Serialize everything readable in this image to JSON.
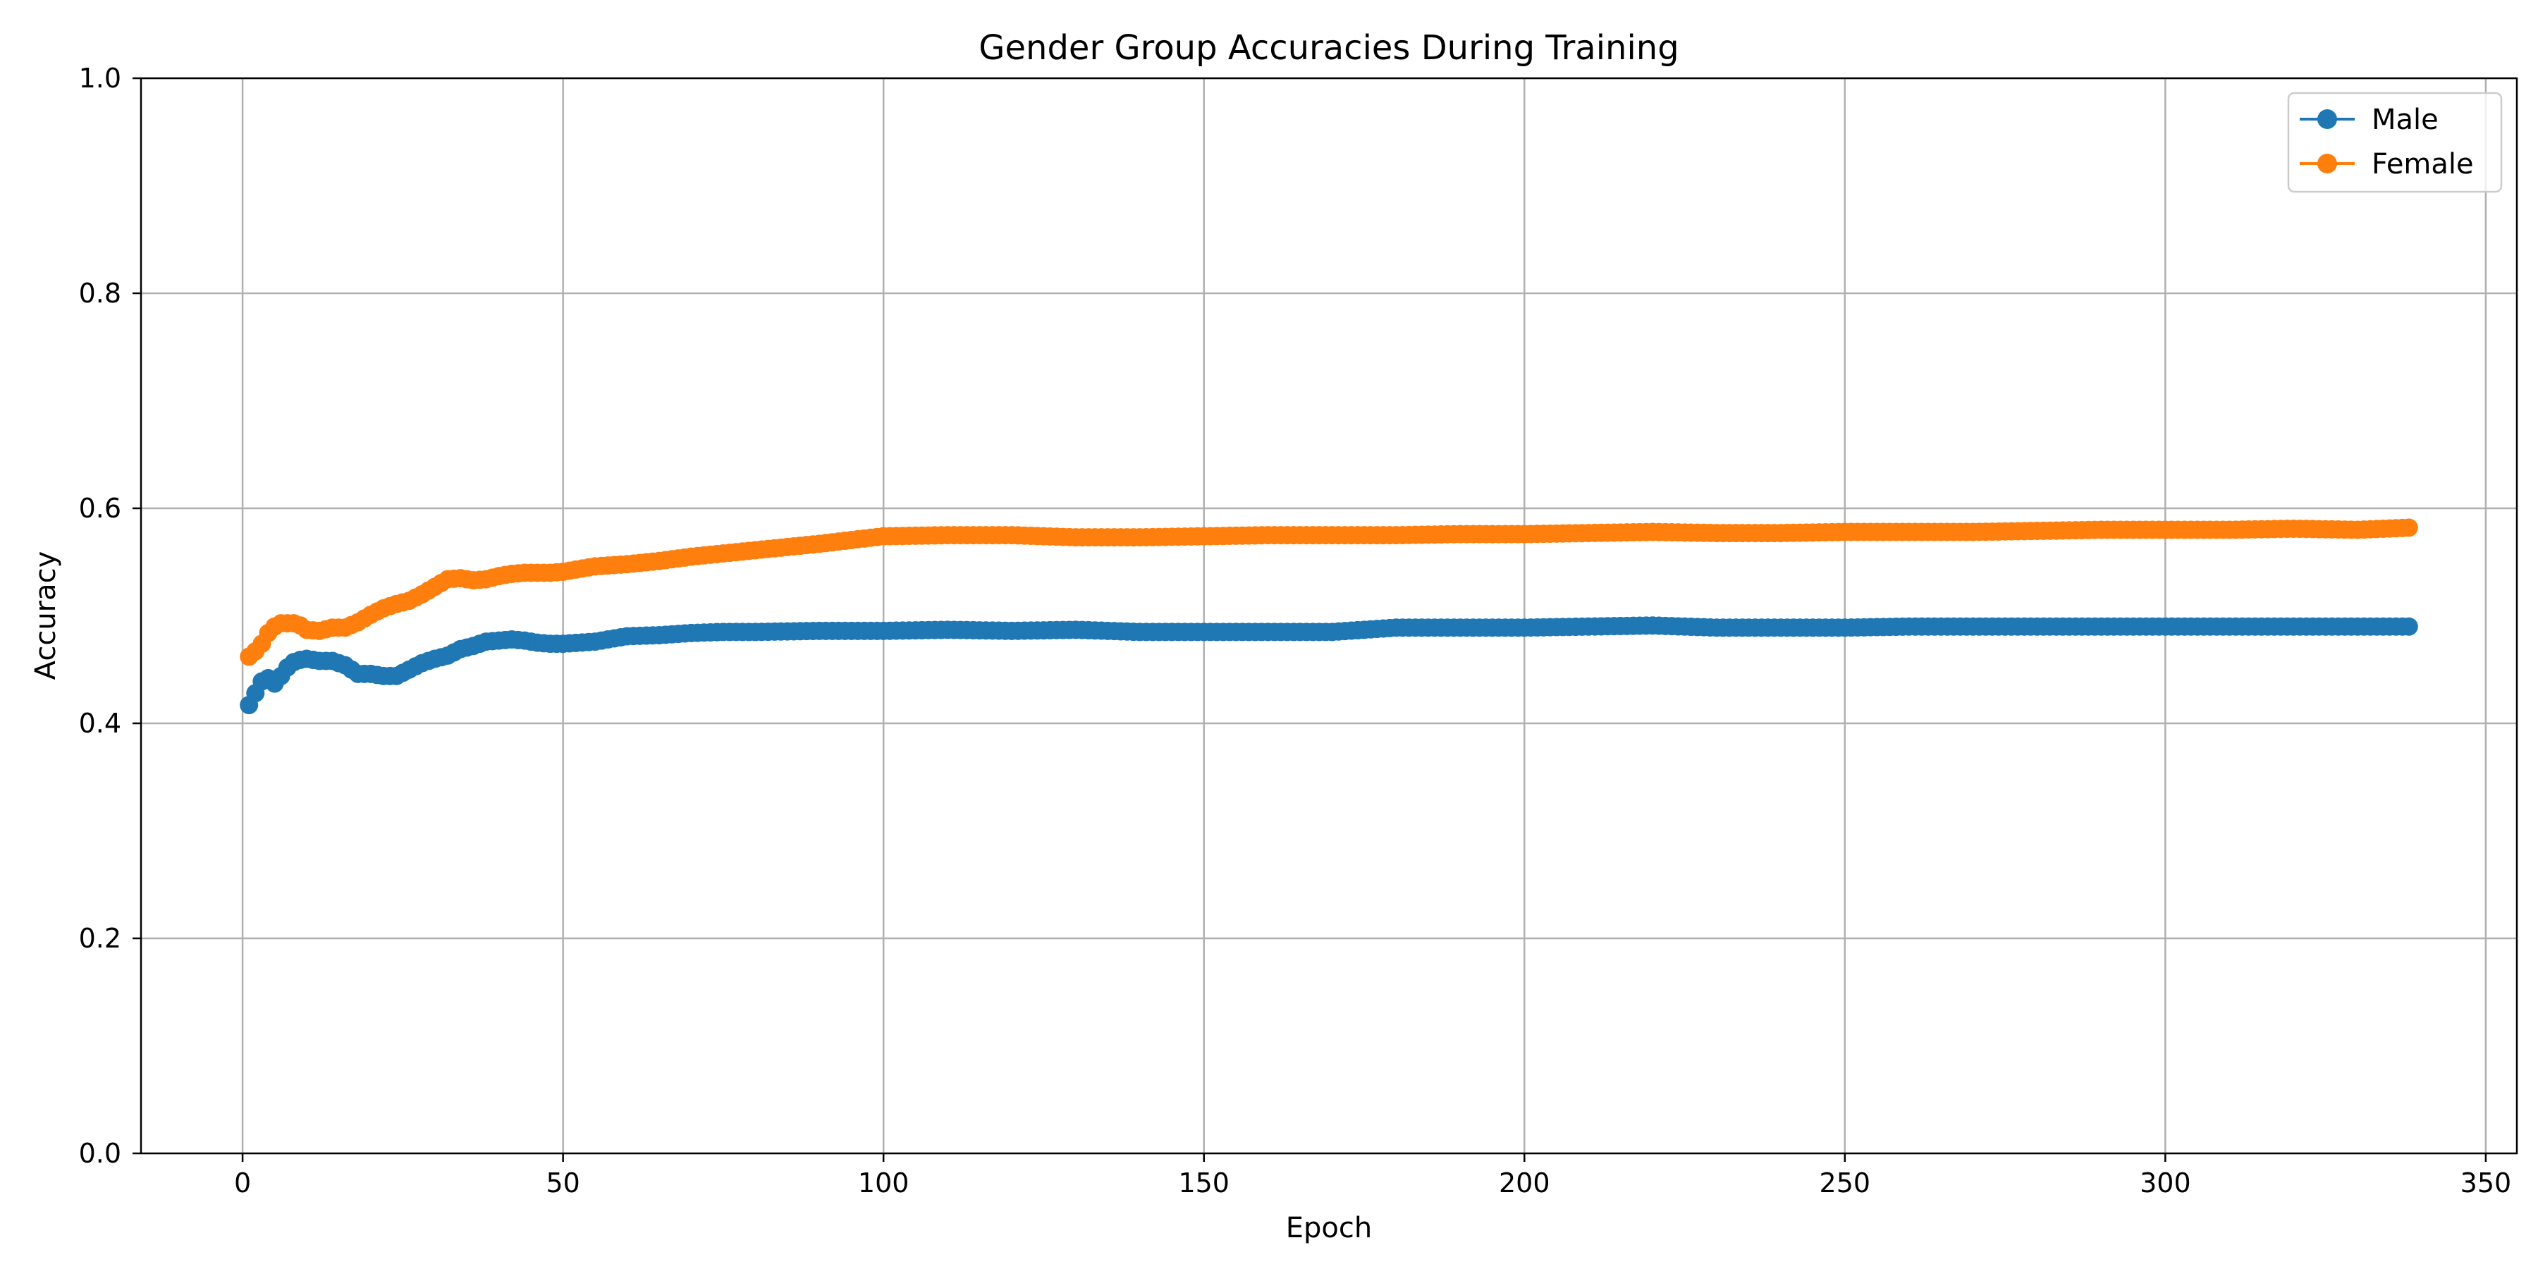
{
  "chart_data": {
    "type": "line",
    "title": "Gender Group Accuracies During Training",
    "xlabel": "Epoch",
    "ylabel": "Accuracy",
    "xlim": [
      -15.85,
      354.85
    ],
    "ylim": [
      0.0,
      1.0
    ],
    "xticks": [
      0,
      50,
      100,
      150,
      200,
      250,
      300,
      350
    ],
    "yticks": [
      0.0,
      0.2,
      0.4,
      0.6,
      0.8,
      1.0
    ],
    "xtick_labels": [
      "0",
      "50",
      "100",
      "150",
      "200",
      "250",
      "300",
      "350"
    ],
    "ytick_labels": [
      "0.0",
      "0.2",
      "0.4",
      "0.6",
      "0.8",
      "1.0"
    ],
    "grid": true,
    "legend_position": "top-right",
    "markers": "circle",
    "series": [
      {
        "name": "Male",
        "color": "#1f77b4",
        "x": [
          1,
          2,
          3,
          4,
          5,
          6,
          7,
          8,
          9,
          10,
          12,
          14,
          16,
          18,
          20,
          22,
          24,
          26,
          28,
          30,
          32,
          34,
          36,
          38,
          40,
          42,
          44,
          46,
          48,
          50,
          55,
          60,
          65,
          70,
          75,
          80,
          90,
          100,
          110,
          120,
          130,
          140,
          150,
          160,
          170,
          180,
          190,
          200,
          210,
          220,
          230,
          240,
          250,
          260,
          270,
          280,
          290,
          300,
          310,
          320,
          330,
          338
        ],
        "y": [
          0.417,
          0.428,
          0.439,
          0.442,
          0.437,
          0.444,
          0.452,
          0.457,
          0.459,
          0.46,
          0.458,
          0.458,
          0.454,
          0.446,
          0.446,
          0.444,
          0.444,
          0.45,
          0.456,
          0.46,
          0.463,
          0.469,
          0.472,
          0.476,
          0.477,
          0.478,
          0.477,
          0.475,
          0.474,
          0.474,
          0.476,
          0.481,
          0.482,
          0.484,
          0.485,
          0.485,
          0.486,
          0.486,
          0.487,
          0.486,
          0.487,
          0.485,
          0.485,
          0.485,
          0.485,
          0.489,
          0.489,
          0.489,
          0.49,
          0.491,
          0.489,
          0.489,
          0.489,
          0.49,
          0.49,
          0.49,
          0.49,
          0.49,
          0.49,
          0.49,
          0.49,
          0.49
        ]
      },
      {
        "name": "Female",
        "color": "#ff7f0e",
        "x": [
          1,
          2,
          3,
          4,
          5,
          6,
          7,
          8,
          9,
          10,
          12,
          14,
          16,
          18,
          20,
          22,
          24,
          26,
          28,
          30,
          32,
          34,
          36,
          38,
          40,
          42,
          44,
          46,
          48,
          50,
          55,
          60,
          65,
          70,
          75,
          80,
          90,
          100,
          110,
          120,
          130,
          140,
          150,
          160,
          170,
          180,
          190,
          200,
          210,
          220,
          230,
          240,
          250,
          260,
          270,
          280,
          290,
          300,
          310,
          320,
          330,
          338
        ],
        "y": [
          0.462,
          0.467,
          0.474,
          0.484,
          0.49,
          0.493,
          0.493,
          0.493,
          0.491,
          0.487,
          0.486,
          0.489,
          0.489,
          0.494,
          0.501,
          0.507,
          0.511,
          0.514,
          0.52,
          0.527,
          0.534,
          0.535,
          0.533,
          0.534,
          0.537,
          0.539,
          0.54,
          0.54,
          0.54,
          0.541,
          0.546,
          0.548,
          0.551,
          0.555,
          0.558,
          0.561,
          0.567,
          0.574,
          0.575,
          0.575,
          0.573,
          0.573,
          0.574,
          0.575,
          0.575,
          0.575,
          0.576,
          0.576,
          0.577,
          0.578,
          0.577,
          0.577,
          0.578,
          0.578,
          0.578,
          0.579,
          0.58,
          0.58,
          0.58,
          0.581,
          0.58,
          0.582
        ]
      }
    ]
  }
}
